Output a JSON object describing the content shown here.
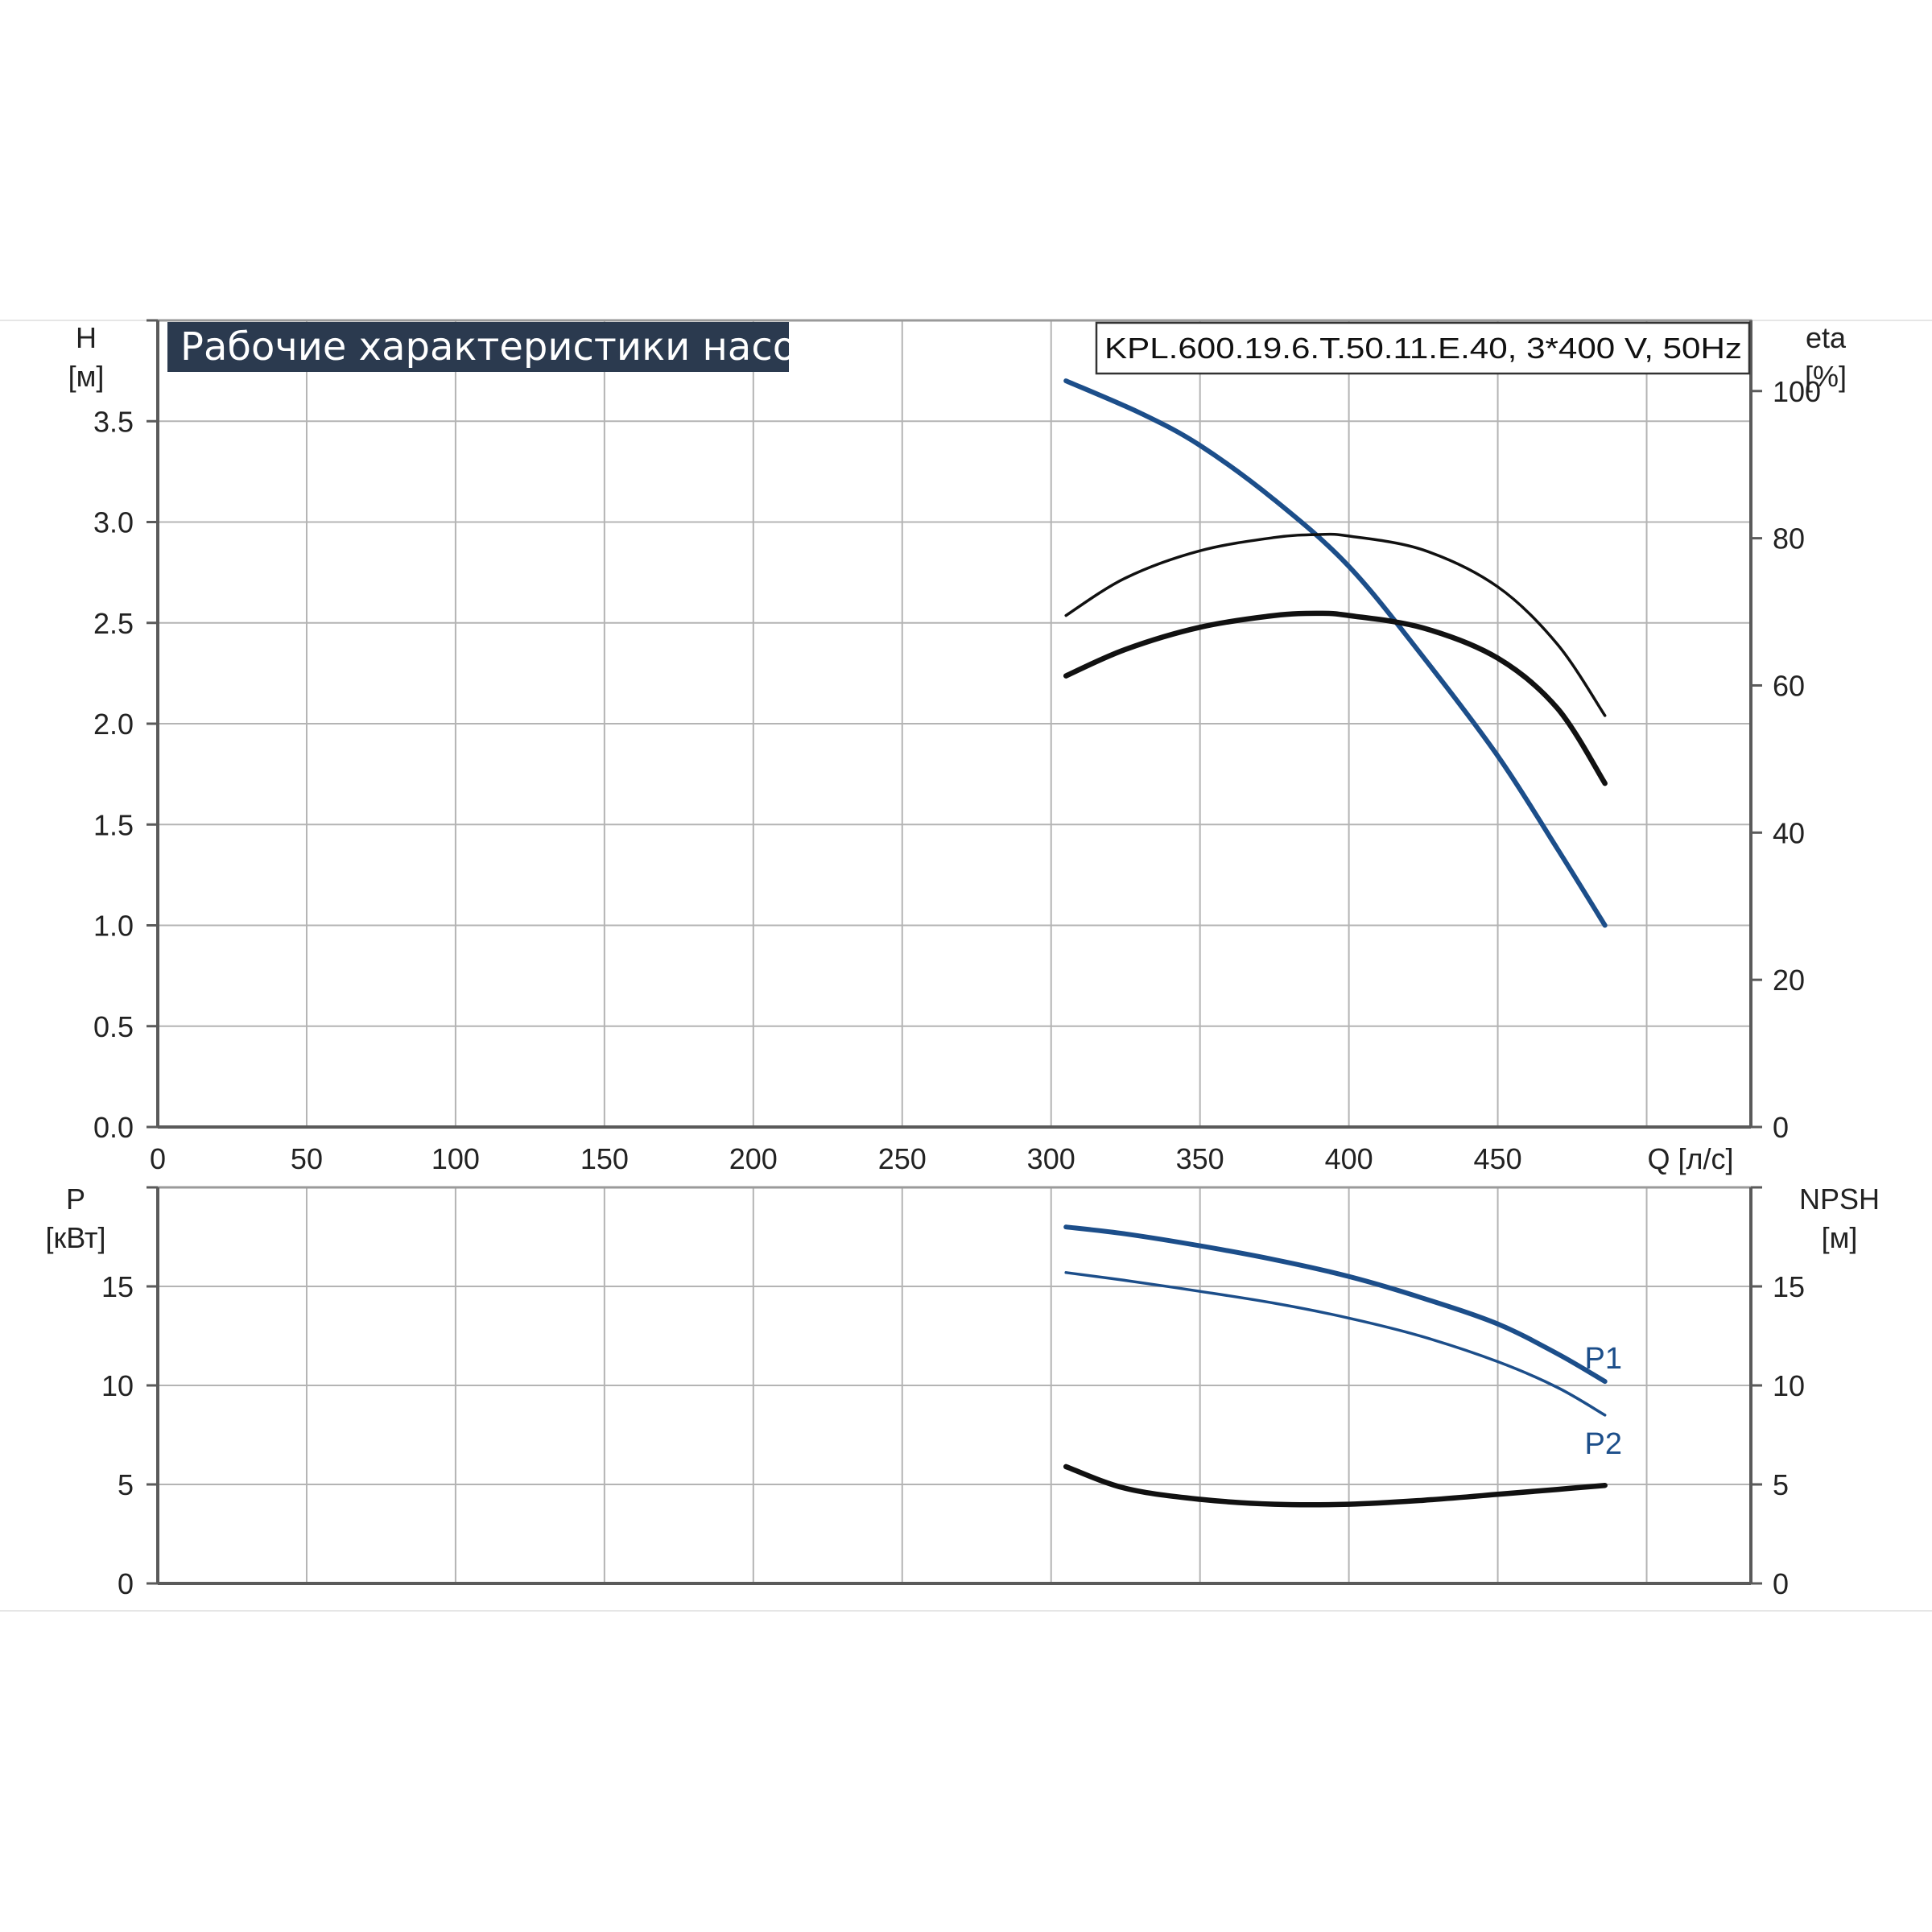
{
  "title": "Рабочие характеристики насоса",
  "model": "KPL.600.19.6.T.50.11.E.40, 3*400 V, 50Hz",
  "colors": {
    "background": "#ffffff",
    "grid": "#b4b4b4",
    "axis": "#5a5a5a",
    "title_bg": "#2b3a4f",
    "head_curve": "#1c4e8a",
    "efficiency_curve": "#111111",
    "power_curve": "#1c4e8a",
    "npsh_curve": "#111111"
  },
  "chart_data": [
    {
      "type": "line",
      "panel": "top",
      "title": "Рабочие характеристики насоса",
      "xlabel": "Q [л/с]",
      "ylabel": "H [м]",
      "y2label": "eta [%]",
      "xlim": [
        0,
        535
      ],
      "ylim": [
        0,
        4.0
      ],
      "y2lim": [
        0,
        109.6
      ],
      "x_ticks": [
        "0",
        "50",
        "100",
        "150",
        "200",
        "250",
        "300",
        "350",
        "400",
        "450"
      ],
      "y_ticks": [
        "0.0",
        "0.5",
        "1.0",
        "1.5",
        "2.0",
        "2.5",
        "3.0",
        "3.5"
      ],
      "y2_ticks": [
        "0",
        "20",
        "40",
        "60",
        "80",
        "100"
      ],
      "grid": true,
      "series": [
        {
          "key": "H",
          "axis": "y",
          "style": "blue-thick",
          "x": [
            305,
            330,
            350,
            375,
            400,
            425,
            450,
            470,
            486
          ],
          "values": [
            3.7,
            3.54,
            3.38,
            3.11,
            2.78,
            2.33,
            1.84,
            1.38,
            1.0
          ]
        },
        {
          "key": "eta-upper",
          "axis": "y2",
          "style": "black-thin",
          "x": [
            305,
            325,
            350,
            375,
            390,
            400,
            425,
            450,
            470,
            486
          ],
          "values": [
            69.5,
            74.6,
            78.3,
            80.1,
            80.5,
            80.3,
            78.4,
            73.4,
            65.6,
            55.9
          ]
        },
        {
          "key": "eta-lower",
          "axis": "y2",
          "style": "black-thick",
          "x": [
            305,
            325,
            350,
            375,
            390,
            400,
            425,
            450,
            470,
            486
          ],
          "values": [
            61.3,
            64.9,
            67.9,
            69.5,
            69.8,
            69.5,
            67.8,
            63.7,
            56.9,
            46.7
          ]
        }
      ]
    },
    {
      "type": "line",
      "panel": "bottom",
      "xlabel": "",
      "ylabel": "P [кВт]",
      "y2label": "NPSH [м]",
      "xlim": [
        0,
        535
      ],
      "ylim": [
        0,
        20
      ],
      "y2lim": [
        0,
        20
      ],
      "y_ticks": [
        "0",
        "5",
        "10",
        "15"
      ],
      "y2_ticks": [
        "0",
        "5",
        "10",
        "15"
      ],
      "grid": true,
      "series": [
        {
          "name": "P1",
          "key": "P1",
          "axis": "y",
          "style": "blue-thick",
          "x": [
            305,
            325,
            350,
            375,
            400,
            425,
            450,
            470,
            486
          ],
          "values": [
            18.0,
            17.65,
            17.05,
            16.35,
            15.5,
            14.4,
            13.1,
            11.6,
            10.2
          ]
        },
        {
          "name": "P2",
          "key": "P2",
          "axis": "y",
          "style": "blue-thin",
          "x": [
            305,
            325,
            350,
            375,
            400,
            425,
            450,
            470,
            486
          ],
          "values": [
            15.7,
            15.3,
            14.75,
            14.15,
            13.4,
            12.45,
            11.2,
            9.9,
            8.5
          ]
        },
        {
          "key": "NPSH",
          "axis": "y2",
          "style": "black-thick",
          "x": [
            305,
            325,
            350,
            375,
            400,
            425,
            450,
            470,
            486
          ],
          "values": [
            5.9,
            4.8,
            4.25,
            4.0,
            4.0,
            4.2,
            4.5,
            4.75,
            4.95
          ]
        }
      ]
    }
  ]
}
